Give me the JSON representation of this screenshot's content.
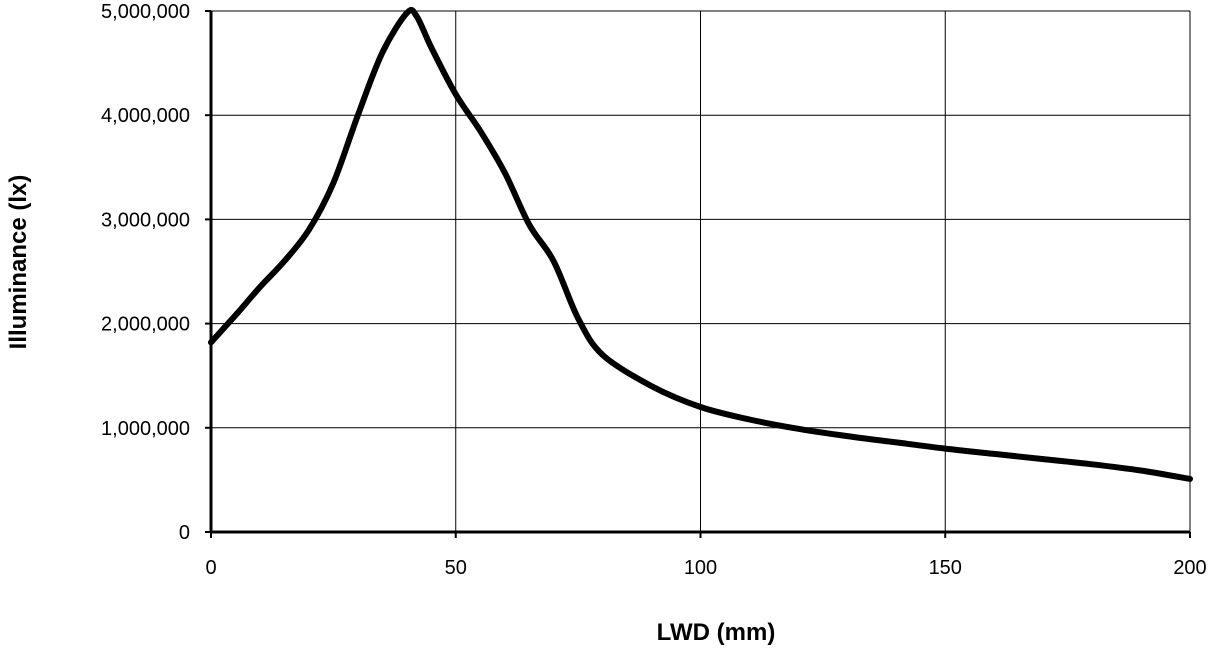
{
  "chart_data": {
    "type": "line",
    "xlabel": "LWD (mm)",
    "ylabel": "Illuminance (lx)",
    "xlim": [
      0,
      200
    ],
    "ylim": [
      0,
      5000000
    ],
    "x_ticks": [
      0,
      50,
      100,
      150,
      200
    ],
    "x_tick_labels": [
      "0",
      "50",
      "100",
      "150",
      "200"
    ],
    "y_ticks": [
      0,
      1000000,
      2000000,
      3000000,
      4000000,
      5000000
    ],
    "y_tick_labels": [
      "0",
      "1,000,000",
      "2,000,000",
      "3,000,000",
      "4,000,000",
      "5,000,000"
    ],
    "grid": true,
    "legend": "none",
    "series": [
      {
        "color": "#000000",
        "x": [
          0,
          5,
          10,
          15,
          20,
          25,
          30,
          35,
          40,
          42,
          45,
          50,
          55,
          60,
          65,
          70,
          75,
          80,
          90,
          100,
          110,
          120,
          130,
          140,
          150,
          160,
          170,
          180,
          190,
          200
        ],
        "y": [
          1820000,
          2080000,
          2350000,
          2600000,
          2900000,
          3350000,
          4000000,
          4600000,
          4980000,
          4950000,
          4650000,
          4200000,
          3850000,
          3450000,
          2950000,
          2600000,
          2050000,
          1700000,
          1400000,
          1200000,
          1080000,
          990000,
          920000,
          860000,
          800000,
          750000,
          700000,
          650000,
          590000,
          510000
        ]
      }
    ]
  }
}
